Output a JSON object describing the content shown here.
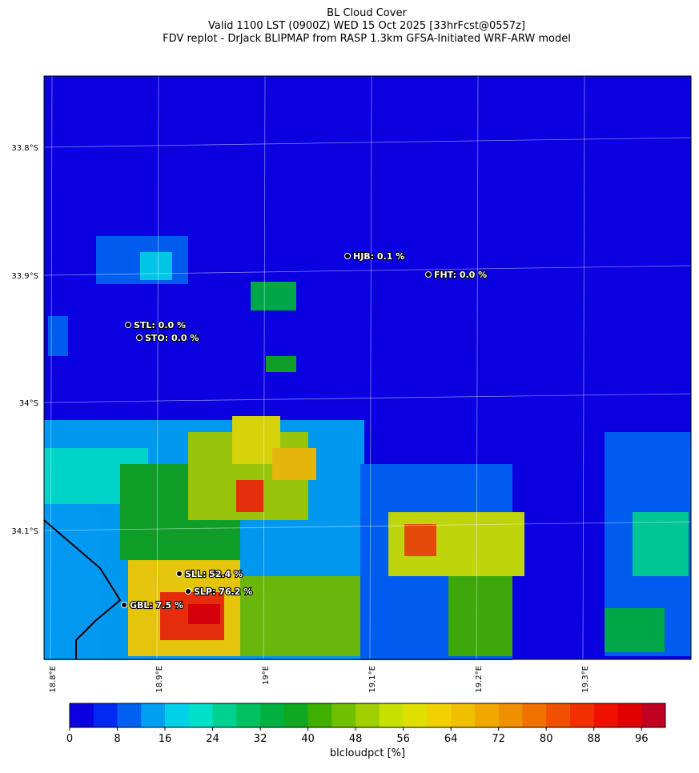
{
  "header": {
    "title": "BL Cloud Cover",
    "subtitle": "Valid 1100 LST (0900Z) WED 15 Oct 2025 [33hrFcst@0557z]",
    "source": "FDV replot - DrJack BLIPMAP from RASP 1.3km GFSA-Initiated WRF-ARW model"
  },
  "map": {
    "lat_labels": [
      "33.8°S",
      "33.9°S",
      "34°S",
      "34.1°S"
    ],
    "lon_labels": [
      "18.8°E",
      "18.9°E",
      "19°E",
      "19.1°E",
      "19.2°E",
      "19.3°E"
    ],
    "stations": [
      {
        "label": "HJB: 0.1 %"
      },
      {
        "label": "FHT: 0.0 %"
      },
      {
        "label": "STL: 0.0 %"
      },
      {
        "label": "STO: 0.0 %"
      },
      {
        "label": "SLL: 52.4 %"
      },
      {
        "label": "SLP: 76.2 %"
      },
      {
        "label": "GBL: 7.5 %"
      }
    ]
  },
  "colorbar": {
    "label": "blcloudpct [%]",
    "range": [
      0,
      100
    ],
    "ticks": [
      0,
      8,
      16,
      24,
      32,
      40,
      48,
      56,
      64,
      72,
      80,
      88,
      96
    ],
    "colors": [
      "#0a00e0",
      "#0028f0",
      "#0060f0",
      "#00a0f0",
      "#00d0e8",
      "#00e0c8",
      "#00d090",
      "#00c060",
      "#00b040",
      "#10a820",
      "#40b000",
      "#70c000",
      "#a0d000",
      "#c8e000",
      "#e0e000",
      "#f0d000",
      "#f0c000",
      "#f0a800",
      "#f09000",
      "#f07000",
      "#f05000",
      "#f03000",
      "#f01000",
      "#e00000",
      "#c00020"
    ]
  }
}
